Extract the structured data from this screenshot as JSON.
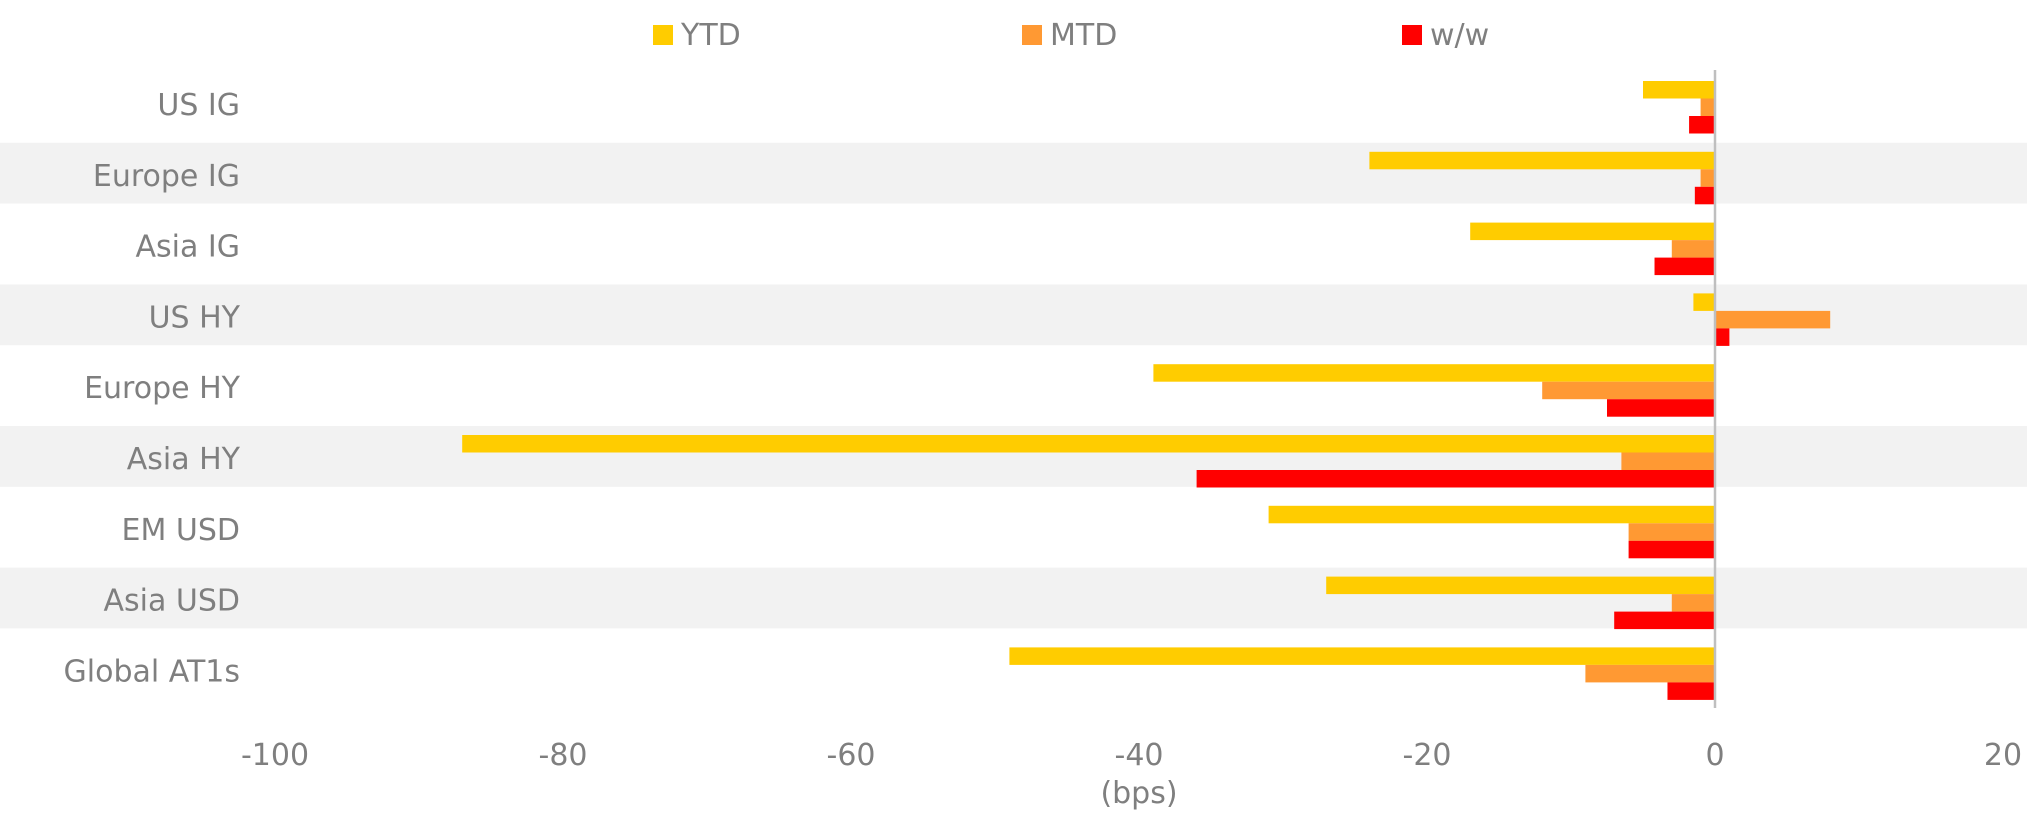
{
  "chart_data": {
    "type": "bar",
    "orientation": "horizontal",
    "title": "",
    "xlabel": "(bps)",
    "ylabel": "",
    "xlim": [
      -100,
      20
    ],
    "x_ticks": [
      -100,
      -80,
      -60,
      -40,
      -20,
      0,
      20
    ],
    "grid": false,
    "alternating_row_bands": true,
    "legend_position": "top",
    "categories": [
      "US IG",
      "Europe IG",
      "Asia IG",
      "US HY",
      "Europe HY",
      "Asia HY",
      "EM USD",
      "Asia USD",
      "Global AT1s"
    ],
    "series": [
      {
        "name": "YTD",
        "color": "#FFCC00",
        "values": [
          -5,
          -24,
          -17,
          -1.5,
          -39,
          -87,
          -31,
          -27,
          -49
        ]
      },
      {
        "name": "MTD",
        "color": "#FF9933",
        "values": [
          -1,
          -1,
          -3,
          8,
          -12,
          -6.5,
          -6,
          -3,
          -9
        ]
      },
      {
        "name": "w/w",
        "color": "#FF0000",
        "values": [
          -1.8,
          -1.4,
          -4.2,
          1,
          -7.5,
          -36,
          -6,
          -7,
          -3.3
        ]
      }
    ],
    "colors": {
      "band": "#F2F2F2",
      "zero_line": "#BFBFBF",
      "text": "#7F7F7F"
    }
  }
}
